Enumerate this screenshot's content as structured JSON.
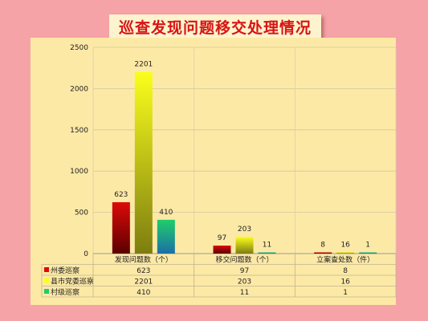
{
  "title": "巡查发现问题移交处理情况",
  "chart_data": {
    "type": "bar",
    "categories": [
      "发现问题数（个）",
      "移交问题数（个）",
      "立案查处数（件）"
    ],
    "series": [
      {
        "name": "州委巡察",
        "values": [
          623,
          97,
          8
        ],
        "color": "#dd0a0a",
        "color2": "#5a0000"
      },
      {
        "name": "县市党委巡察",
        "values": [
          2201,
          203,
          16
        ],
        "color": "#fbff1c",
        "color2": "#7d7d10"
      },
      {
        "name": "村级巡察",
        "values": [
          410,
          11,
          1
        ],
        "color": "#1fcd6a",
        "color2": "#1b6fa8"
      }
    ],
    "ylim": [
      0,
      2500
    ],
    "yticks": [
      0,
      500,
      1000,
      1500,
      2000,
      2500
    ],
    "grid": true,
    "legend": "data-table-below"
  }
}
